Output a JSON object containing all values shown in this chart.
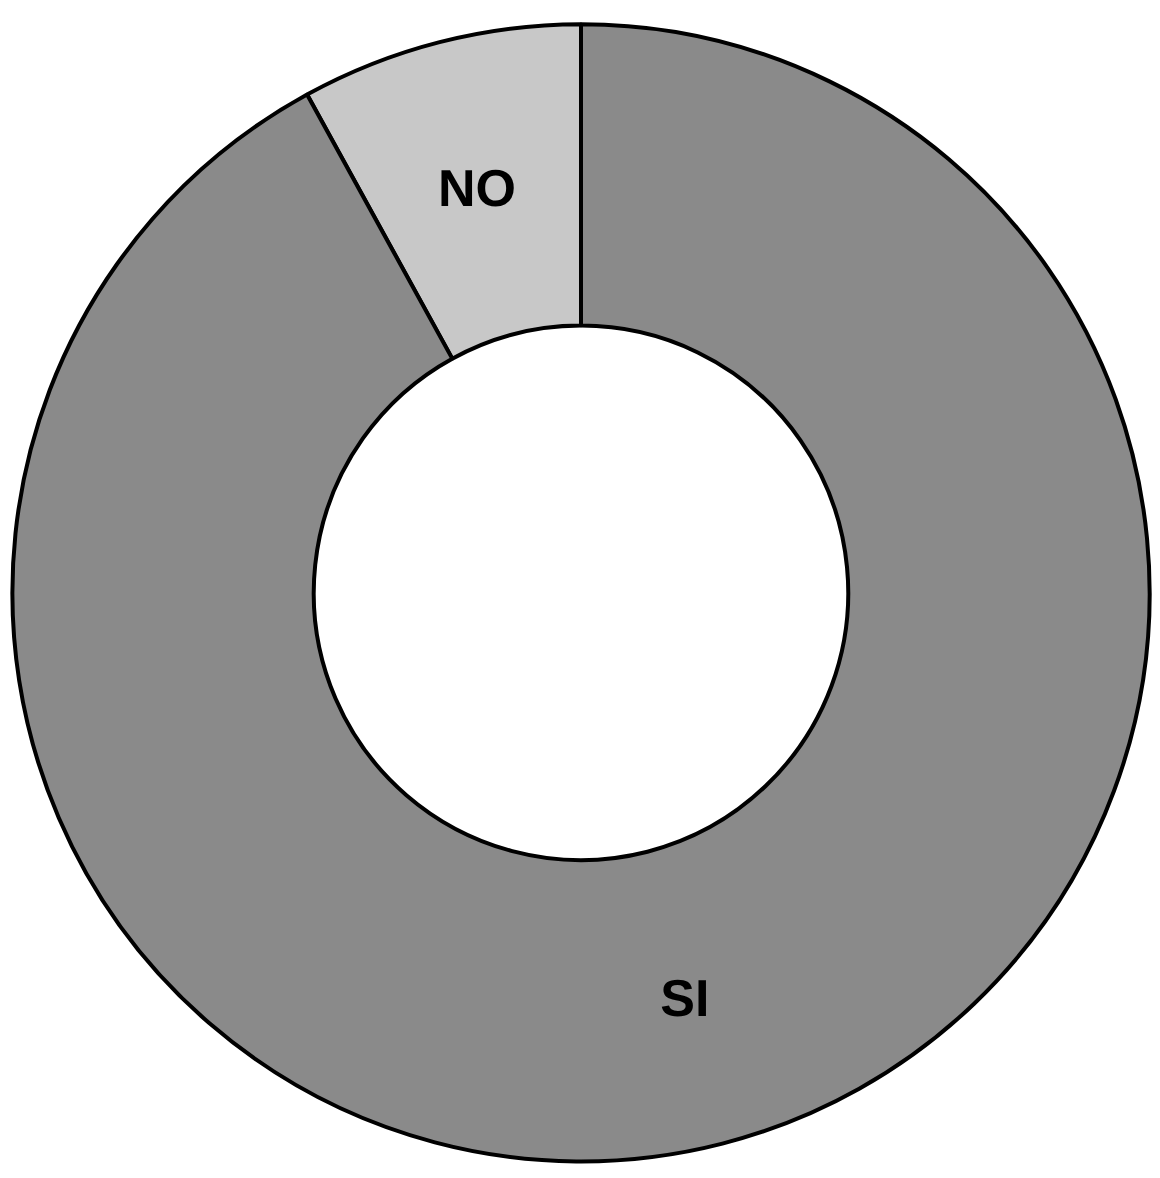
{
  "chart_data": {
    "type": "donut",
    "categories": [
      "NO",
      "SI"
    ],
    "values": [
      8,
      92
    ],
    "colors": [
      "#c8c8c8",
      "#8a8a8a"
    ]
  }
}
